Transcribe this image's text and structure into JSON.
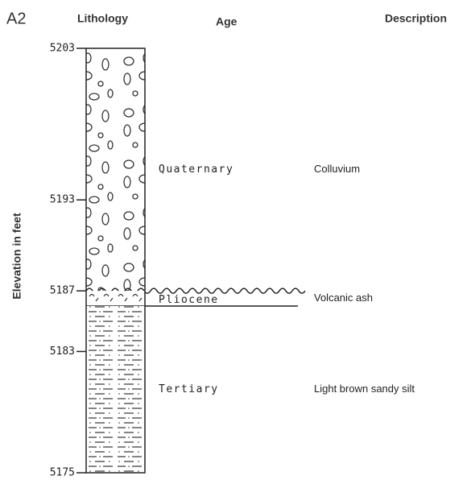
{
  "header": {
    "id": "A2",
    "lithology": "Lithology",
    "age": "Age",
    "description": "Description"
  },
  "elevation_axis": {
    "label": "Elevation in feet",
    "ticks": [
      5203,
      5193,
      5187,
      5183,
      5175
    ]
  },
  "units": [
    {
      "age": "Quaternary",
      "description": "Colluvium",
      "top": 5203,
      "bottom": 5187
    },
    {
      "age": "Pliocene",
      "description": "Volcanic ash",
      "top": 5187,
      "bottom": 5186
    },
    {
      "age": "Tertiary",
      "description": "Light brown sandy silt",
      "top": 5186,
      "bottom": 5175
    }
  ]
}
